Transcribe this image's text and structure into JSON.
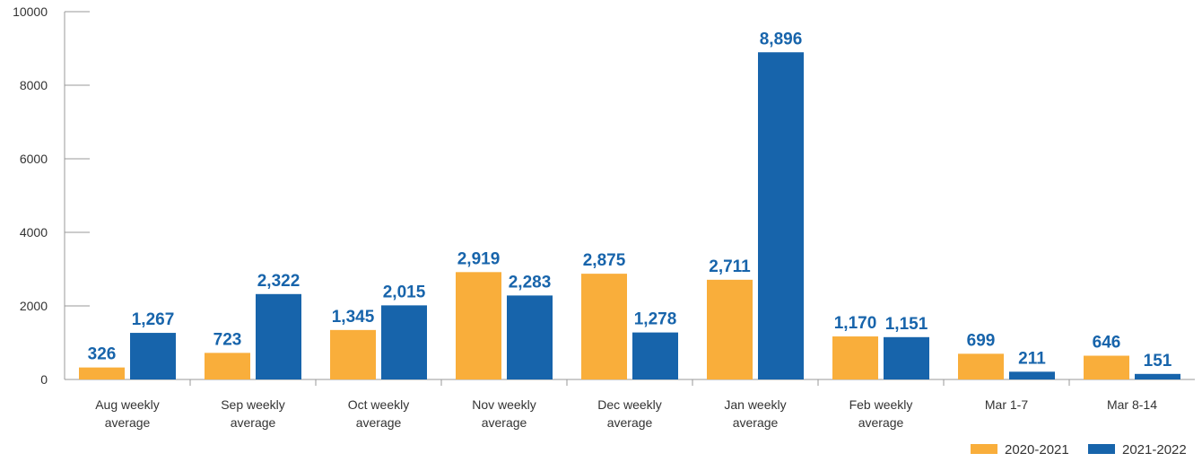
{
  "chart_data": {
    "type": "bar",
    "categories": [
      [
        "Aug weekly",
        "average"
      ],
      [
        "Sep weekly",
        "average"
      ],
      [
        "Oct weekly",
        "average"
      ],
      [
        "Nov weekly",
        "average"
      ],
      [
        "Dec weekly",
        "average"
      ],
      [
        "Jan weekly",
        "average"
      ],
      [
        "Feb weekly",
        "average"
      ],
      [
        "Mar 1-7"
      ],
      [
        "Mar 8-14"
      ]
    ],
    "series": [
      {
        "name": "2020-2021",
        "color": "#F9AE3B",
        "values": [
          326,
          723,
          1345,
          2919,
          2875,
          2711,
          1170,
          699,
          646
        ],
        "labels": [
          "326",
          "723",
          "1,345",
          "2,919",
          "2,875",
          "2,711",
          "1,170",
          "699",
          "646"
        ]
      },
      {
        "name": "2021-2022",
        "color": "#1764AB",
        "values": [
          1267,
          2322,
          2015,
          2283,
          1278,
          8896,
          1151,
          211,
          151
        ],
        "labels": [
          "1,267",
          "2,322",
          "2,015",
          "2,283",
          "1,278",
          "8,896",
          "1,151",
          "211",
          "151"
        ]
      }
    ],
    "ylim": [
      0,
      10000
    ],
    "yticks": [
      0,
      2000,
      4000,
      6000,
      8000,
      10000
    ],
    "label_color": "#1764AB",
    "axis_color": "#999999",
    "legend_position": "bottom-right",
    "grid": false
  }
}
